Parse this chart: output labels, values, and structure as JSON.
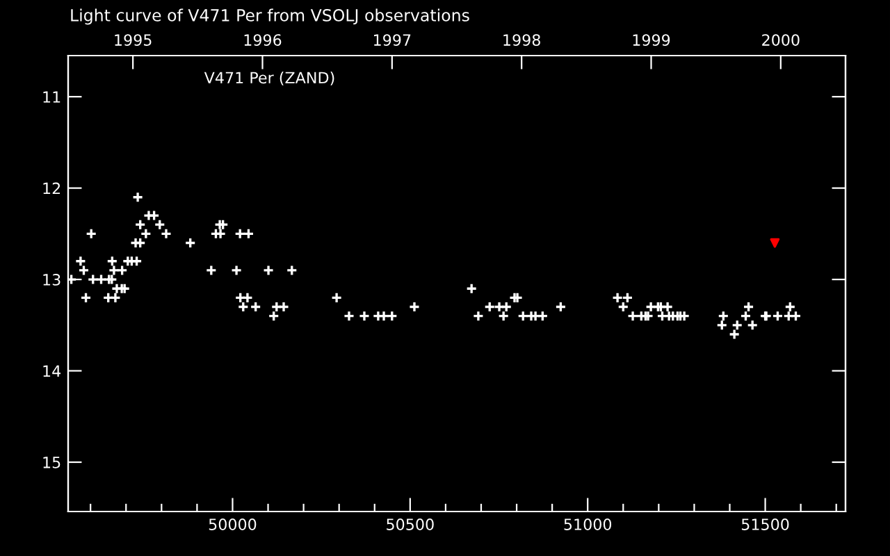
{
  "chart_data": {
    "type": "scatter",
    "title": "Light curve of V471 Per from VSOLJ observations",
    "annotations": [
      "V471 Per (ZAND)"
    ],
    "xlim": [
      49537,
      51726
    ],
    "xticks": [
      {
        "value": 49600,
        "label": null
      },
      {
        "value": 49700,
        "label": null
      },
      {
        "value": 49800,
        "label": null
      },
      {
        "value": 49900,
        "label": null
      },
      50000,
      {
        "value": 50100,
        "label": null
      },
      {
        "value": 50200,
        "label": null
      },
      {
        "value": 50300,
        "label": null
      },
      {
        "value": 50400,
        "label": null
      },
      50500,
      {
        "value": 50600,
        "label": null
      },
      {
        "value": 50700,
        "label": null
      },
      {
        "value": 50800,
        "label": null
      },
      {
        "value": 50900,
        "label": null
      },
      51000,
      {
        "value": 51100,
        "label": null
      },
      {
        "value": 51200,
        "label": null
      },
      {
        "value": 51300,
        "label": null
      },
      {
        "value": 51400,
        "label": null
      },
      51500,
      {
        "value": 51600,
        "label": null
      },
      {
        "value": 51700,
        "label": null
      }
    ],
    "x2lim": [
      1994.5,
      2000.5
    ],
    "x2ticks": [
      1995,
      1996,
      1997,
      1998,
      1999,
      2000
    ],
    "ylim": [
      15.54,
      10.55
    ],
    "yticks": [
      11,
      12,
      13,
      14,
      15
    ],
    "grid": false,
    "legend": false,
    "series": [
      {
        "color": "#ffffff",
        "marker": "cross",
        "x": [
          49733,
          49764,
          49779,
          49740,
          49795,
          49602,
          49756,
          49813,
          49727,
          49740,
          49881,
          49964,
          49973,
          49953,
          49966,
          50021,
          50045,
          49572,
          49661,
          49705,
          49716,
          49730,
          49581,
          49666,
          49689,
          49940,
          50011,
          50101,
          50167,
          49546,
          49607,
          49630,
          49652,
          49660,
          49674,
          49688,
          49696,
          49587,
          49650,
          49670,
          50022,
          50042,
          50030,
          50065,
          50124,
          50144,
          50116,
          50293,
          50328,
          50371,
          50410,
          50426,
          50449,
          50512,
          50673,
          50692,
          50724,
          50751,
          50771,
          50763,
          50794,
          50802,
          50818,
          50841,
          50853,
          50873,
          50924,
          51084,
          51112,
          51100,
          51127,
          51151,
          51163,
          51170,
          51178,
          51198,
          51206,
          51225,
          51210,
          51229,
          51240,
          51253,
          51261,
          51272,
          51382,
          51378,
          51421,
          51413,
          51453,
          51445,
          51464,
          51500,
          51503,
          51535,
          51570,
          51566,
          51586
        ],
        "values": [
          12.1,
          12.3,
          12.3,
          12.4,
          12.4,
          12.5,
          12.5,
          12.5,
          12.6,
          12.6,
          12.6,
          12.4,
          12.4,
          12.5,
          12.5,
          12.5,
          12.5,
          12.8,
          12.8,
          12.8,
          12.8,
          12.8,
          12.9,
          12.9,
          12.9,
          12.9,
          12.9,
          12.9,
          12.9,
          13.0,
          13.0,
          13.0,
          13.0,
          13.0,
          13.1,
          13.1,
          13.1,
          13.2,
          13.2,
          13.2,
          13.2,
          13.2,
          13.3,
          13.3,
          13.3,
          13.3,
          13.4,
          13.2,
          13.4,
          13.4,
          13.4,
          13.4,
          13.4,
          13.3,
          13.1,
          13.4,
          13.3,
          13.3,
          13.3,
          13.4,
          13.2,
          13.2,
          13.4,
          13.4,
          13.4,
          13.4,
          13.3,
          13.2,
          13.2,
          13.3,
          13.4,
          13.4,
          13.4,
          13.4,
          13.3,
          13.3,
          13.3,
          13.3,
          13.4,
          13.4,
          13.4,
          13.4,
          13.4,
          13.4,
          13.4,
          13.5,
          13.5,
          13.6,
          13.3,
          13.4,
          13.5,
          13.4,
          13.4,
          13.4,
          13.3,
          13.4,
          13.4
        ]
      },
      {
        "color": "#ff0000",
        "marker": "triangle",
        "x": [
          51527
        ],
        "values": [
          12.6
        ]
      }
    ]
  }
}
